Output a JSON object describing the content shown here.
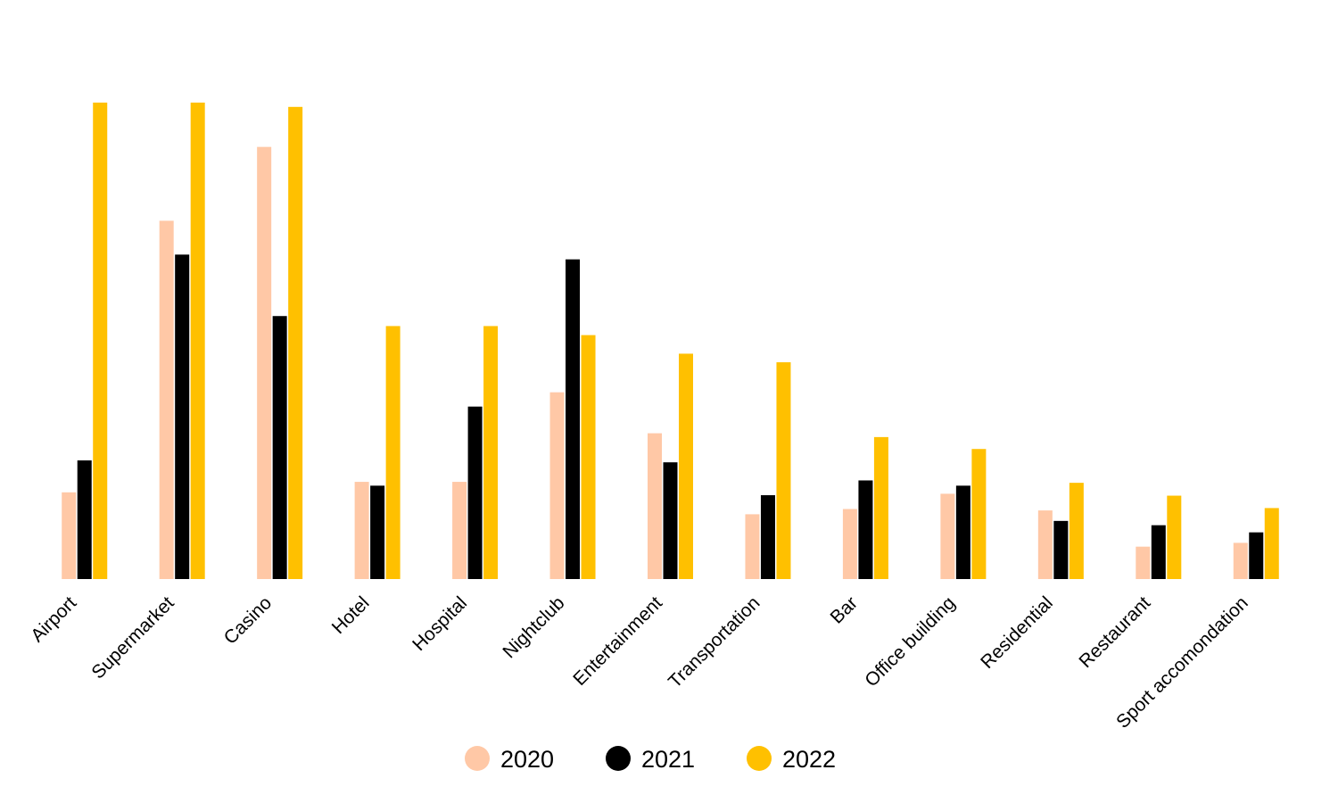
{
  "chart_data": {
    "type": "bar",
    "title": "",
    "xlabel": "",
    "ylabel": "",
    "categories": [
      "Airport",
      "Supermarket",
      "Casino",
      "Hotel",
      "Hospital",
      "Nightclub",
      "Entertainment",
      "Transportation",
      "Bar",
      "Office building",
      "Residential",
      "Restaurant",
      "Sport accomondation"
    ],
    "series": [
      {
        "name": "2020",
        "color": "#FFC8A6",
        "values": [
          18.2,
          75.2,
          90.7,
          20.4,
          20.4,
          39.2,
          30.6,
          13.6,
          14.7,
          17.9,
          14.4,
          6.8,
          7.6
        ]
      },
      {
        "name": "2021",
        "color": "#000000",
        "values": [
          24.9,
          68.1,
          55.2,
          19.6,
          36.2,
          67.1,
          24.5,
          17.6,
          20.7,
          19.6,
          12.2,
          11.3,
          9.8
        ]
      },
      {
        "name": "2022",
        "color": "#FFC000",
        "values": [
          100,
          100,
          99.1,
          53.1,
          53.1,
          51.2,
          47.3,
          45.5,
          29.8,
          27.3,
          20.2,
          17.5,
          14.9
        ]
      }
    ],
    "ylim": [
      0,
      100
    ],
    "grid": false,
    "legend": {
      "placement": "bottom-center",
      "marker": "circle"
    },
    "x_tick_rotation": -45
  }
}
